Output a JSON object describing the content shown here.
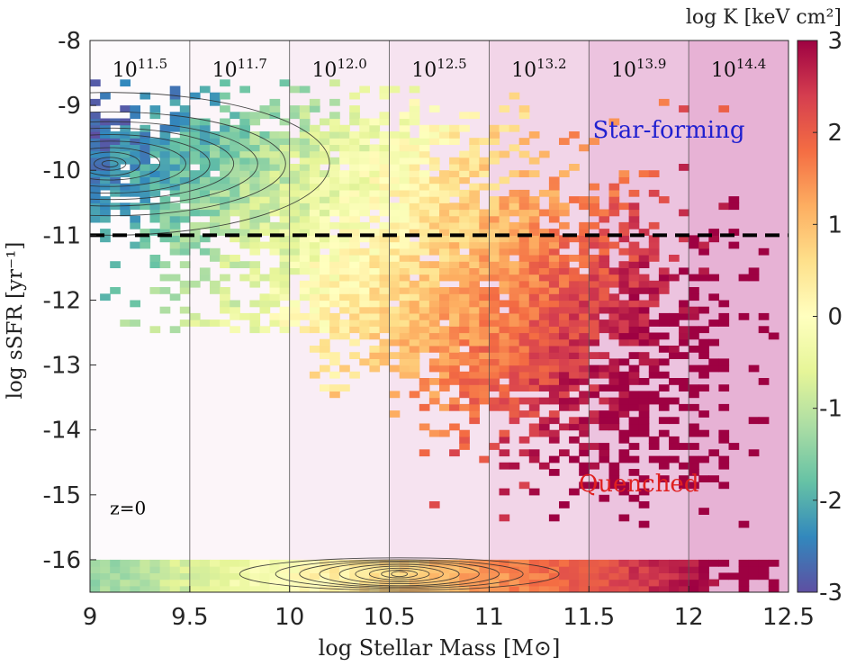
{
  "chart_data": {
    "type": "heatmap",
    "title": "",
    "xlabel": "log Stellar Mass [M⊙]",
    "ylabel": "log sSFR [yr⁻¹]",
    "xlim": [
      9,
      12.5
    ],
    "ylim": [
      -16.5,
      -8
    ],
    "xticks": [
      9,
      9.5,
      10,
      10.5,
      11,
      11.5,
      12,
      12.5
    ],
    "xtick_labels": [
      "9",
      "9.5",
      "10",
      "10.5",
      "11",
      "11.5",
      "12",
      "12.5"
    ],
    "yticks": [
      -8,
      -9,
      -10,
      -11,
      -12,
      -13,
      -14,
      -15,
      -16
    ],
    "ytick_labels": [
      "-8",
      "-9",
      "-10",
      "-11",
      "-12",
      "-13",
      "-14",
      "-15",
      "-16"
    ],
    "colorbar": {
      "label": "log K [keV cm²]",
      "min": -3,
      "max": 3,
      "ticks": [
        3,
        2,
        1,
        0,
        -1,
        -2,
        -3
      ],
      "tick_labels": [
        "3",
        "2",
        "1",
        "0",
        "-1",
        "-2",
        "-3"
      ],
      "colormap": "Spectral_r"
    },
    "threshold_line": {
      "y": -11,
      "style": "dashed",
      "color": "#000000"
    },
    "halo_mass_bins": [
      {
        "x_from": 9.0,
        "x_to": 9.5,
        "label_base": "10",
        "label_exp": "11.5",
        "shade": 0.03
      },
      {
        "x_from": 9.5,
        "x_to": 10.0,
        "label_base": "10",
        "label_exp": "11.7",
        "shade": 0.06
      },
      {
        "x_from": 10.0,
        "x_to": 10.5,
        "label_base": "10",
        "label_exp": "12.0",
        "shade": 0.1
      },
      {
        "x_from": 10.5,
        "x_to": 11.0,
        "label_base": "10",
        "label_exp": "12.5",
        "shade": 0.16
      },
      {
        "x_from": 11.0,
        "x_to": 11.5,
        "label_base": "10",
        "label_exp": "13.2",
        "shade": 0.24
      },
      {
        "x_from": 11.5,
        "x_to": 12.0,
        "label_base": "10",
        "label_exp": "13.9",
        "shade": 0.34
      },
      {
        "x_from": 12.0,
        "x_to": 12.5,
        "label_base": "10",
        "label_exp": "14.4",
        "shade": 0.44
      }
    ],
    "populations": [
      {
        "name": "star-forming",
        "label": "Star-forming",
        "ssfr_center": -10.0,
        "ssfr_spread": 0.6,
        "mass_range": [
          9.0,
          11.2
        ],
        "logK_range": [
          -2.0,
          0.5
        ]
      },
      {
        "name": "quenched",
        "label": "Quenched",
        "ssfr_center": -12.5,
        "ssfr_spread": 1.0,
        "mass_range": [
          10.3,
          12.5
        ],
        "logK_range": [
          0.0,
          2.2
        ]
      },
      {
        "name": "zero-sfr",
        "ssfr_value": -16.25,
        "mass_range": [
          9.0,
          12.4
        ],
        "logK_range": [
          -1.0,
          2.0
        ]
      }
    ],
    "contours": [
      {
        "center": [
          9.1,
          -9.9
        ],
        "x_radii": [
          0.04,
          0.08,
          0.15,
          0.25,
          0.38,
          0.5,
          0.62,
          0.74,
          0.88,
          1.1
        ],
        "y_radii": [
          0.05,
          0.1,
          0.18,
          0.25,
          0.35,
          0.45,
          0.55,
          0.65,
          0.8,
          1.1
        ]
      },
      {
        "center": [
          10.55,
          -16.22
        ],
        "x_radii": [
          0.04,
          0.09,
          0.15,
          0.22,
          0.3,
          0.4,
          0.5,
          0.62,
          0.8
        ],
        "y_radii": [
          0.04,
          0.06,
          0.09,
          0.12,
          0.15,
          0.18,
          0.2,
          0.22,
          0.25
        ]
      }
    ],
    "annotations": [
      {
        "text": "Star-forming",
        "x": 11.9,
        "y": -9.5,
        "color": "#2020d0"
      },
      {
        "text": "Quenched",
        "x": 11.75,
        "y": -14.95,
        "color": "#e02020"
      },
      {
        "text": "z=0",
        "x": 9.1,
        "y": -15.3,
        "color": "#000000"
      }
    ]
  }
}
